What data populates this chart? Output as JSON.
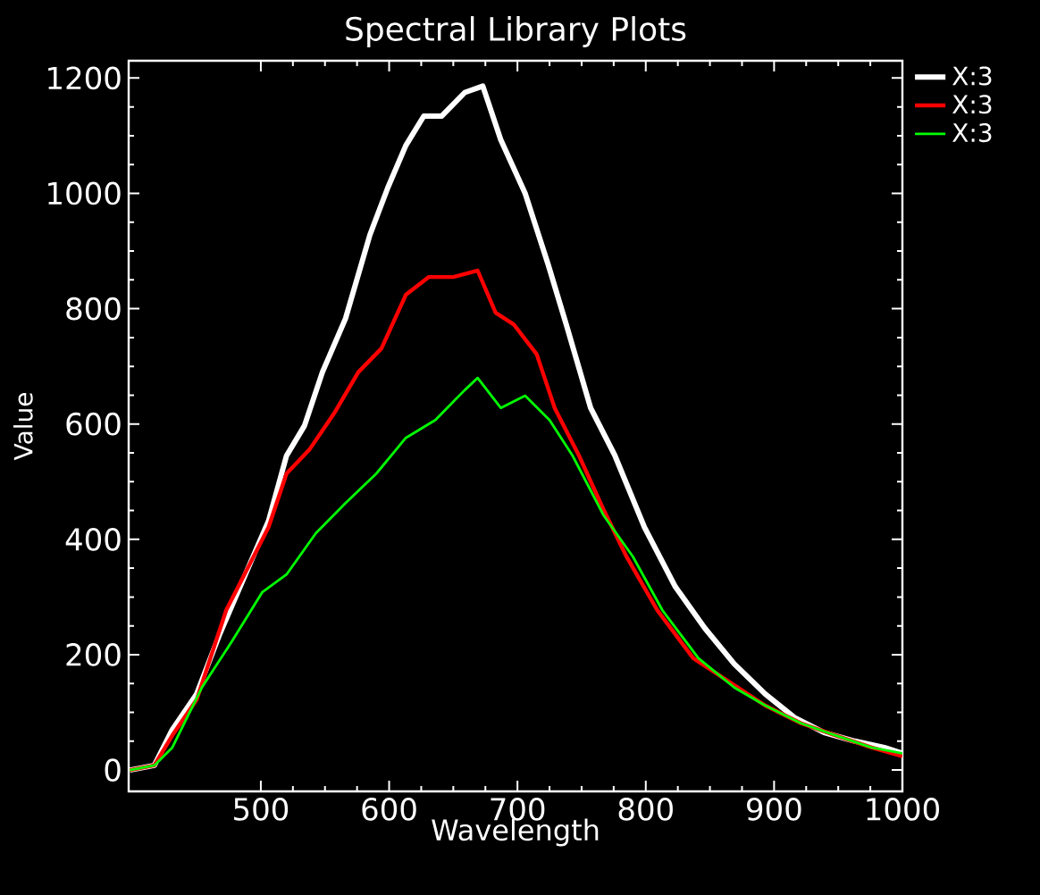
{
  "chart_data": {
    "type": "line",
    "title": "Spectral Library Plots",
    "xlabel": "Wavelength",
    "ylabel": "Value",
    "xlim": [
      397,
      1000
    ],
    "ylim": [
      -37,
      1230
    ],
    "xticks": [
      500,
      600,
      700,
      800,
      900,
      1000
    ],
    "yticks": [
      0,
      200,
      400,
      600,
      800,
      1000,
      1200
    ],
    "legend": "top right",
    "series": [
      {
        "name": "X:3",
        "color": "#ffffff",
        "x": [
          398,
          417,
          431,
          450,
          468,
          492,
          506,
          520,
          534,
          548,
          566,
          585,
          599,
          613,
          627,
          641,
          659,
          673,
          687,
          706,
          724,
          738,
          757,
          776,
          799,
          823,
          846,
          869,
          893,
          916,
          939,
          963,
          986,
          1000
        ],
        "values": [
          0,
          8,
          70,
          132,
          236,
          360,
          432,
          545,
          597,
          690,
          783,
          928,
          1010,
          1083,
          1134,
          1134,
          1175,
          1186,
          1093,
          1000,
          876,
          773,
          628,
          545,
          421,
          318,
          246,
          184,
          132,
          91,
          65,
          50,
          39,
          29
        ]
      },
      {
        "name": "X:3",
        "color": "#ff0000",
        "x": [
          398,
          417,
          431,
          450,
          473,
          492,
          506,
          520,
          538,
          557,
          576,
          594,
          613,
          631,
          650,
          669,
          683,
          697,
          715,
          729,
          748,
          767,
          785,
          809,
          837,
          865,
          893,
          921,
          948,
          976,
          1000
        ],
        "values": [
          0,
          8,
          60,
          122,
          277,
          360,
          421,
          514,
          556,
          618,
          690,
          731,
          824,
          855,
          855,
          866,
          793,
          773,
          721,
          628,
          545,
          452,
          370,
          277,
          194,
          153,
          112,
          81,
          60,
          39,
          24
        ]
      },
      {
        "name": "X:3",
        "color": "#00ff00",
        "x": [
          398,
          417,
          431,
          454,
          478,
          501,
          520,
          543,
          566,
          590,
          613,
          636,
          659,
          669,
          687,
          706,
          725,
          743,
          767,
          790,
          813,
          841,
          869,
          893,
          921,
          948,
          976,
          1000
        ],
        "values": [
          0,
          8,
          39,
          143,
          225,
          308,
          339,
          411,
          463,
          514,
          576,
          607,
          659,
          680,
          628,
          649,
          607,
          545,
          442,
          370,
          277,
          194,
          143,
          112,
          81,
          60,
          39,
          29
        ]
      }
    ]
  }
}
